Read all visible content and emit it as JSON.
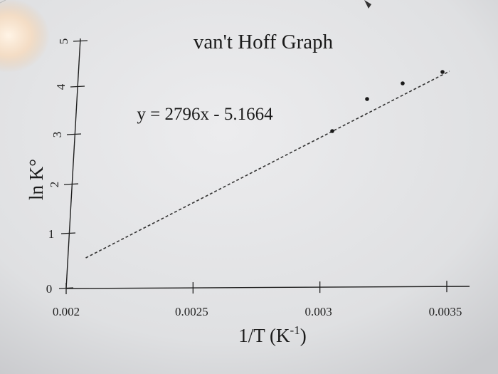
{
  "chart_data": {
    "type": "scatter",
    "title": "van't Hoff Graph",
    "xlabel": "1/T (K-1)",
    "xlabel_main": "1/T (K",
    "xlabel_sup": "-1",
    "xlabel_close": ")",
    "ylabel": "ln K°",
    "annotation": "y = 2796x - 5.1664",
    "xlim": [
      0.002,
      0.0035
    ],
    "ylim": [
      0,
      5
    ],
    "x_ticks": [
      "0.002",
      "0.0025",
      "0.003",
      "0.0035"
    ],
    "y_ticks": [
      "0",
      "1",
      "2",
      "3",
      "4",
      "5"
    ],
    "x_tick_values": [
      0.002,
      0.0025,
      0.003,
      0.0035
    ],
    "y_tick_values": [
      0,
      1,
      2,
      3,
      4,
      5
    ],
    "points": [
      {
        "x": 0.00305,
        "y": 3.05
      },
      {
        "x": 0.00318,
        "y": 3.72
      },
      {
        "x": 0.00332,
        "y": 4.12
      },
      {
        "x": 0.00346,
        "y": 4.32
      }
    ],
    "trendline": {
      "slope": 2796,
      "intercept": -5.1664,
      "x_range": [
        0.00205,
        0.00346
      ],
      "style": "dashed"
    },
    "grid": false,
    "legend": "none"
  },
  "colors": {
    "paper": "#e4e5e7",
    "ink": "#1f1f1f",
    "marker": "#1a1a1a"
  }
}
